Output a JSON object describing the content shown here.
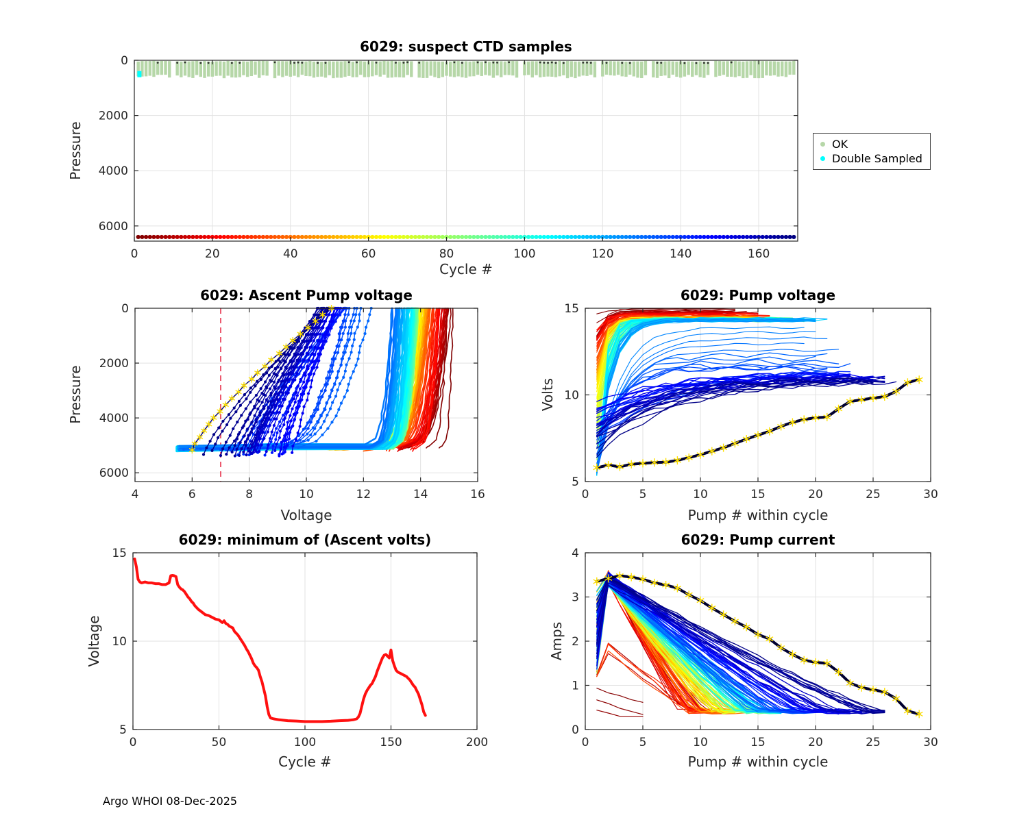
{
  "figure": {
    "footer": "Argo WHOI 08-Dec-2025"
  },
  "chart_data": [
    {
      "id": "suspect_ctd_samples",
      "type": "scatter",
      "title": "6029: suspect CTD samples",
      "xlabel": "Cycle #",
      "ylabel": "Pressure",
      "xlim": [
        0,
        170
      ],
      "ylim": [
        0,
        6550
      ],
      "y_reversed": true,
      "xticks": [
        0,
        20,
        40,
        60,
        80,
        100,
        120,
        140,
        160
      ],
      "yticks": [
        0,
        2000,
        4000,
        6000
      ],
      "grid": true,
      "legend": [
        {
          "label": "OK",
          "color": "#b6d7a8"
        },
        {
          "label": "Double Sampled",
          "color": "#00ffff"
        }
      ],
      "n_cycles": 169,
      "ok_band": {
        "pressure_top": 20,
        "pressure_bottom_min": 520,
        "pressure_bottom_max": 650,
        "gap_fraction": 0.055
      },
      "double_sampled": {
        "cycle": 1.3,
        "pressure": 490
      },
      "deep_dot_row": {
        "pressure": 6400,
        "colormap": "jet_reversed_by_cycle"
      }
    },
    {
      "id": "ascent_pump_voltage",
      "type": "line-multi",
      "title": "6029: Ascent Pump voltage",
      "xlabel": "Voltage",
      "ylabel": "Pressure",
      "xlim": [
        4,
        16
      ],
      "ylim": [
        0,
        6320
      ],
      "y_reversed": true,
      "xticks": [
        4,
        6,
        8,
        10,
        12,
        14,
        16
      ],
      "yticks": [
        0,
        2000,
        4000,
        6000
      ],
      "grid": true,
      "colormap": "jet_reversed_by_cycle",
      "n_cycles": 169,
      "bottom_pressure": 5050,
      "ref_line": {
        "x": 7,
        "style": "dashed",
        "color": "#e8304a"
      },
      "surface_voltage_by_cycle": [
        [
          1,
          15.05
        ],
        [
          15,
          14.75
        ],
        [
          30,
          14.4
        ],
        [
          45,
          14.15
        ],
        [
          60,
          14.0
        ],
        [
          75,
          13.9
        ],
        [
          90,
          13.8
        ],
        [
          105,
          13.65
        ],
        [
          115,
          13.45
        ],
        [
          125,
          13.2
        ],
        [
          130,
          13.0
        ],
        [
          131,
          12.2
        ],
        [
          133,
          11.8
        ],
        [
          135,
          11.5
        ],
        [
          137,
          11.35
        ],
        [
          140,
          11.3
        ],
        [
          145,
          11.15
        ],
        [
          150,
          11.0
        ],
        [
          155,
          10.85
        ],
        [
          160,
          10.6
        ],
        [
          164,
          10.45
        ],
        [
          169,
          10.9
        ]
      ],
      "last_cycle_marker": "yellow-asterisk"
    },
    {
      "id": "pump_voltage",
      "type": "line-multi",
      "title": "6029: Pump voltage",
      "xlabel": "Pump # within cycle",
      "ylabel": "Volts",
      "xlim": [
        0,
        30
      ],
      "ylim": [
        5,
        15
      ],
      "xticks": [
        0,
        5,
        10,
        15,
        20,
        25,
        30
      ],
      "yticks": [
        5,
        10,
        15
      ],
      "grid": true,
      "colormap": "jet_reversed_by_cycle",
      "n_cycles": 169,
      "end_voltage_by_cycle": [
        [
          1,
          14.9
        ],
        [
          20,
          14.6
        ],
        [
          40,
          14.45
        ],
        [
          70,
          14.35
        ],
        [
          100,
          14.35
        ],
        [
          125,
          14.3
        ],
        [
          131,
          12.3
        ],
        [
          134,
          11.7
        ],
        [
          138,
          11.4
        ],
        [
          145,
          11.2
        ],
        [
          152,
          11.05
        ],
        [
          160,
          10.95
        ],
        [
          169,
          10.85
        ]
      ],
      "pumps_per_cycle_by_cycle": [
        [
          1,
          13
        ],
        [
          40,
          15
        ],
        [
          80,
          17
        ],
        [
          110,
          19
        ],
        [
          125,
          20
        ],
        [
          140,
          22
        ],
        [
          160,
          25
        ],
        [
          166,
          26
        ]
      ],
      "last_cycle_series": {
        "pump_numbers_start": 1,
        "volts": [
          5.8,
          5.95,
          5.85,
          6.0,
          6.05,
          6.1,
          6.12,
          6.22,
          6.38,
          6.55,
          6.75,
          6.95,
          7.2,
          7.45,
          7.68,
          7.9,
          8.18,
          8.42,
          8.58,
          8.68,
          8.72,
          9.2,
          9.62,
          9.72,
          9.82,
          9.9,
          10.2,
          10.72,
          10.88
        ],
        "marker": "yellow-asterisk"
      }
    },
    {
      "id": "min_ascent_volts",
      "type": "line",
      "title": "6029: minimum of (Ascent volts)",
      "xlabel": "Cycle #",
      "ylabel": "Voltage",
      "xlim": [
        0,
        200
      ],
      "ylim": [
        5,
        15
      ],
      "xticks": [
        0,
        50,
        100,
        150,
        200
      ],
      "yticks": [
        5,
        10,
        15
      ],
      "grid": true,
      "color": "#ff1010",
      "line_width": 4,
      "points": [
        [
          1,
          14.65
        ],
        [
          2,
          14.2
        ],
        [
          3,
          13.5
        ],
        [
          4,
          13.35
        ],
        [
          5,
          13.3
        ],
        [
          7,
          13.35
        ],
        [
          9,
          13.3
        ],
        [
          11,
          13.3
        ],
        [
          13,
          13.25
        ],
        [
          15,
          13.25
        ],
        [
          17,
          13.2
        ],
        [
          19,
          13.2
        ],
        [
          20,
          13.25
        ],
        [
          21,
          13.3
        ],
        [
          22,
          13.7
        ],
        [
          23,
          13.72
        ],
        [
          24,
          13.7
        ],
        [
          25,
          13.65
        ],
        [
          26,
          13.2
        ],
        [
          27,
          13.05
        ],
        [
          28,
          12.95
        ],
        [
          29,
          12.9
        ],
        [
          30,
          12.8
        ],
        [
          31,
          12.65
        ],
        [
          32,
          12.5
        ],
        [
          33,
          12.4
        ],
        [
          34,
          12.25
        ],
        [
          35,
          12.15
        ],
        [
          36,
          12.0
        ],
        [
          37,
          11.9
        ],
        [
          38,
          11.8
        ],
        [
          40,
          11.65
        ],
        [
          42,
          11.5
        ],
        [
          44,
          11.45
        ],
        [
          46,
          11.35
        ],
        [
          48,
          11.25
        ],
        [
          50,
          11.2
        ],
        [
          52,
          11.05
        ],
        [
          53,
          11.15
        ],
        [
          54,
          11.0
        ],
        [
          55,
          10.95
        ],
        [
          56,
          10.85
        ],
        [
          57,
          10.8
        ],
        [
          58,
          10.75
        ],
        [
          59,
          10.55
        ],
        [
          60,
          10.45
        ],
        [
          61,
          10.35
        ],
        [
          62,
          10.2
        ],
        [
          63,
          10.05
        ],
        [
          64,
          9.9
        ],
        [
          65,
          9.75
        ],
        [
          66,
          9.55
        ],
        [
          67,
          9.4
        ],
        [
          68,
          9.2
        ],
        [
          69,
          9.0
        ],
        [
          70,
          8.75
        ],
        [
          71,
          8.6
        ],
        [
          72,
          8.5
        ],
        [
          73,
          8.35
        ],
        [
          74,
          8.0
        ],
        [
          75,
          7.7
        ],
        [
          76,
          7.3
        ],
        [
          77,
          6.9
        ],
        [
          78,
          6.3
        ],
        [
          79,
          5.85
        ],
        [
          80,
          5.65
        ],
        [
          82,
          5.6
        ],
        [
          85,
          5.55
        ],
        [
          90,
          5.5
        ],
        [
          95,
          5.48
        ],
        [
          100,
          5.45
        ],
        [
          105,
          5.45
        ],
        [
          110,
          5.45
        ],
        [
          115,
          5.47
        ],
        [
          120,
          5.5
        ],
        [
          125,
          5.52
        ],
        [
          128,
          5.55
        ],
        [
          130,
          5.6
        ],
        [
          131,
          5.7
        ],
        [
          132,
          5.9
        ],
        [
          133,
          6.3
        ],
        [
          134,
          6.7
        ],
        [
          135,
          7.0
        ],
        [
          136,
          7.2
        ],
        [
          137,
          7.35
        ],
        [
          138,
          7.5
        ],
        [
          139,
          7.6
        ],
        [
          140,
          7.8
        ],
        [
          141,
          8.0
        ],
        [
          142,
          8.3
        ],
        [
          143,
          8.55
        ],
        [
          144,
          8.8
        ],
        [
          145,
          9.05
        ],
        [
          146,
          9.2
        ],
        [
          147,
          9.25
        ],
        [
          148,
          9.15
        ],
        [
          149,
          9.05
        ],
        [
          150,
          9.5
        ],
        [
          151,
          8.9
        ],
        [
          152,
          8.6
        ],
        [
          153,
          8.35
        ],
        [
          154,
          8.25
        ],
        [
          155,
          8.2
        ],
        [
          156,
          8.15
        ],
        [
          157,
          8.1
        ],
        [
          158,
          8.05
        ],
        [
          159,
          8.0
        ],
        [
          160,
          7.9
        ],
        [
          161,
          7.8
        ],
        [
          162,
          7.65
        ],
        [
          163,
          7.5
        ],
        [
          164,
          7.4
        ],
        [
          165,
          7.2
        ],
        [
          166,
          7.0
        ],
        [
          167,
          6.7
        ],
        [
          168,
          6.4
        ],
        [
          169,
          6.0
        ],
        [
          170,
          5.8
        ]
      ]
    },
    {
      "id": "pump_current",
      "type": "line-multi",
      "title": "6029: Pump current",
      "xlabel": "Pump # within cycle",
      "ylabel": "Amps",
      "xlim": [
        0,
        30
      ],
      "ylim": [
        0,
        4
      ],
      "xticks": [
        0,
        5,
        10,
        15,
        20,
        25,
        30
      ],
      "yticks": [
        0,
        1,
        2,
        3,
        4
      ],
      "grid": true,
      "colormap": "jet_reversed_by_cycle",
      "n_cycles": 169,
      "peak_amps": 3.35,
      "floor_amps": 0.4,
      "decay_end_by_cycle": [
        [
          1,
          9
        ],
        [
          30,
          10
        ],
        [
          60,
          12
        ],
        [
          90,
          14
        ],
        [
          115,
          15
        ],
        [
          130,
          16
        ],
        [
          140,
          18
        ],
        [
          150,
          20
        ],
        [
          160,
          23
        ],
        [
          166,
          25
        ]
      ],
      "low_anomaly_cycles": [
        {
          "cycle": 2,
          "amps": 0.92
        },
        {
          "cycle": 3,
          "amps": 0.65
        },
        {
          "cycle": 4,
          "amps": 0.45
        }
      ],
      "last_cycle_series": {
        "pump_numbers_start": 1,
        "amps": [
          3.35,
          3.42,
          3.48,
          3.45,
          3.4,
          3.32,
          3.27,
          3.2,
          3.05,
          2.92,
          2.75,
          2.6,
          2.45,
          2.32,
          2.15,
          2.05,
          1.85,
          1.7,
          1.57,
          1.52,
          1.5,
          1.3,
          1.05,
          0.95,
          0.9,
          0.85,
          0.7,
          0.42,
          0.35
        ],
        "marker": "yellow-asterisk"
      }
    }
  ]
}
